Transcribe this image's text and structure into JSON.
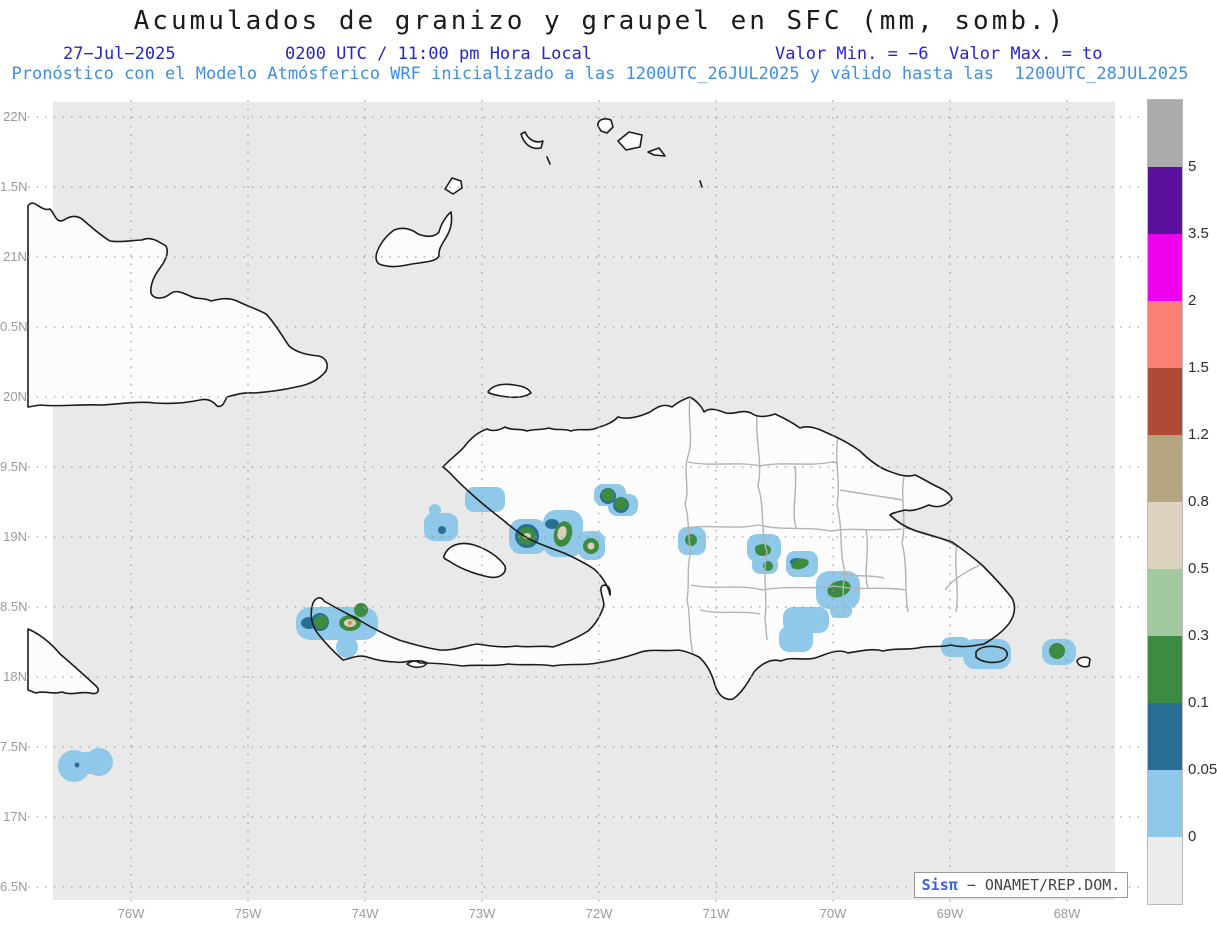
{
  "title": "Acumulados de granizo y graupel en SFC (mm, somb.)",
  "subtitle": {
    "date": "27−Jul−2025",
    "time": "0200 UTC / 11:00 pm Hora Local",
    "minmax": "Valor Min. = −6  Valor Max. = to",
    "model": "Pronóstico con el Modelo Atmósferico WRF inicializado a las 1200UTC_26JUL2025 y válido hasta las  1200UTC_28JUL2025"
  },
  "axes": {
    "y_labels": [
      "22N",
      "1.5N",
      "21N",
      "0.5N",
      "20N",
      "9.5N",
      "19N",
      "8.5N",
      "18N",
      "7.5N",
      "17N",
      "6.5N"
    ],
    "x_labels": [
      "76W",
      "75W",
      "74W",
      "73W",
      "72W",
      "71W",
      "70W",
      "69W",
      "68W"
    ]
  },
  "colorbar": {
    "tick_labels": [
      "5",
      "3.5",
      "2",
      "1.5",
      "1.2",
      "0.8",
      "0.5",
      "0.3",
      "0.1",
      "0.05",
      "0"
    ],
    "colors_top_to_bottom": [
      "#ababab",
      "#5c119c",
      "#ee00ee",
      "#f98072",
      "#ae4a35",
      "#b6a67f",
      "#ded3c0",
      "#a2c99f",
      "#3d8b41",
      "#2b6e95",
      "#8fc8e8",
      "#ececec"
    ],
    "units": "mm"
  },
  "credit": {
    "brand": "Sisπ",
    "text": " − ONAMET/REP.DOM."
  },
  "colors": {
    "subtitle_blue": "#2525cf",
    "model_line_blue": "#3d8fe6",
    "sea": "#e9e9e9",
    "land": "#fcfcfc",
    "coastline": "#1c1c1c",
    "province_border": "#b3b3b3",
    "axis_label_gray": "#9a9a9a",
    "blob_light_blue": "#8fc8e8",
    "blob_teal": "#2b6e95",
    "blob_green": "#3d8b41",
    "blob_beige": "#d8cfba",
    "blob_salmon": "#e08565"
  }
}
